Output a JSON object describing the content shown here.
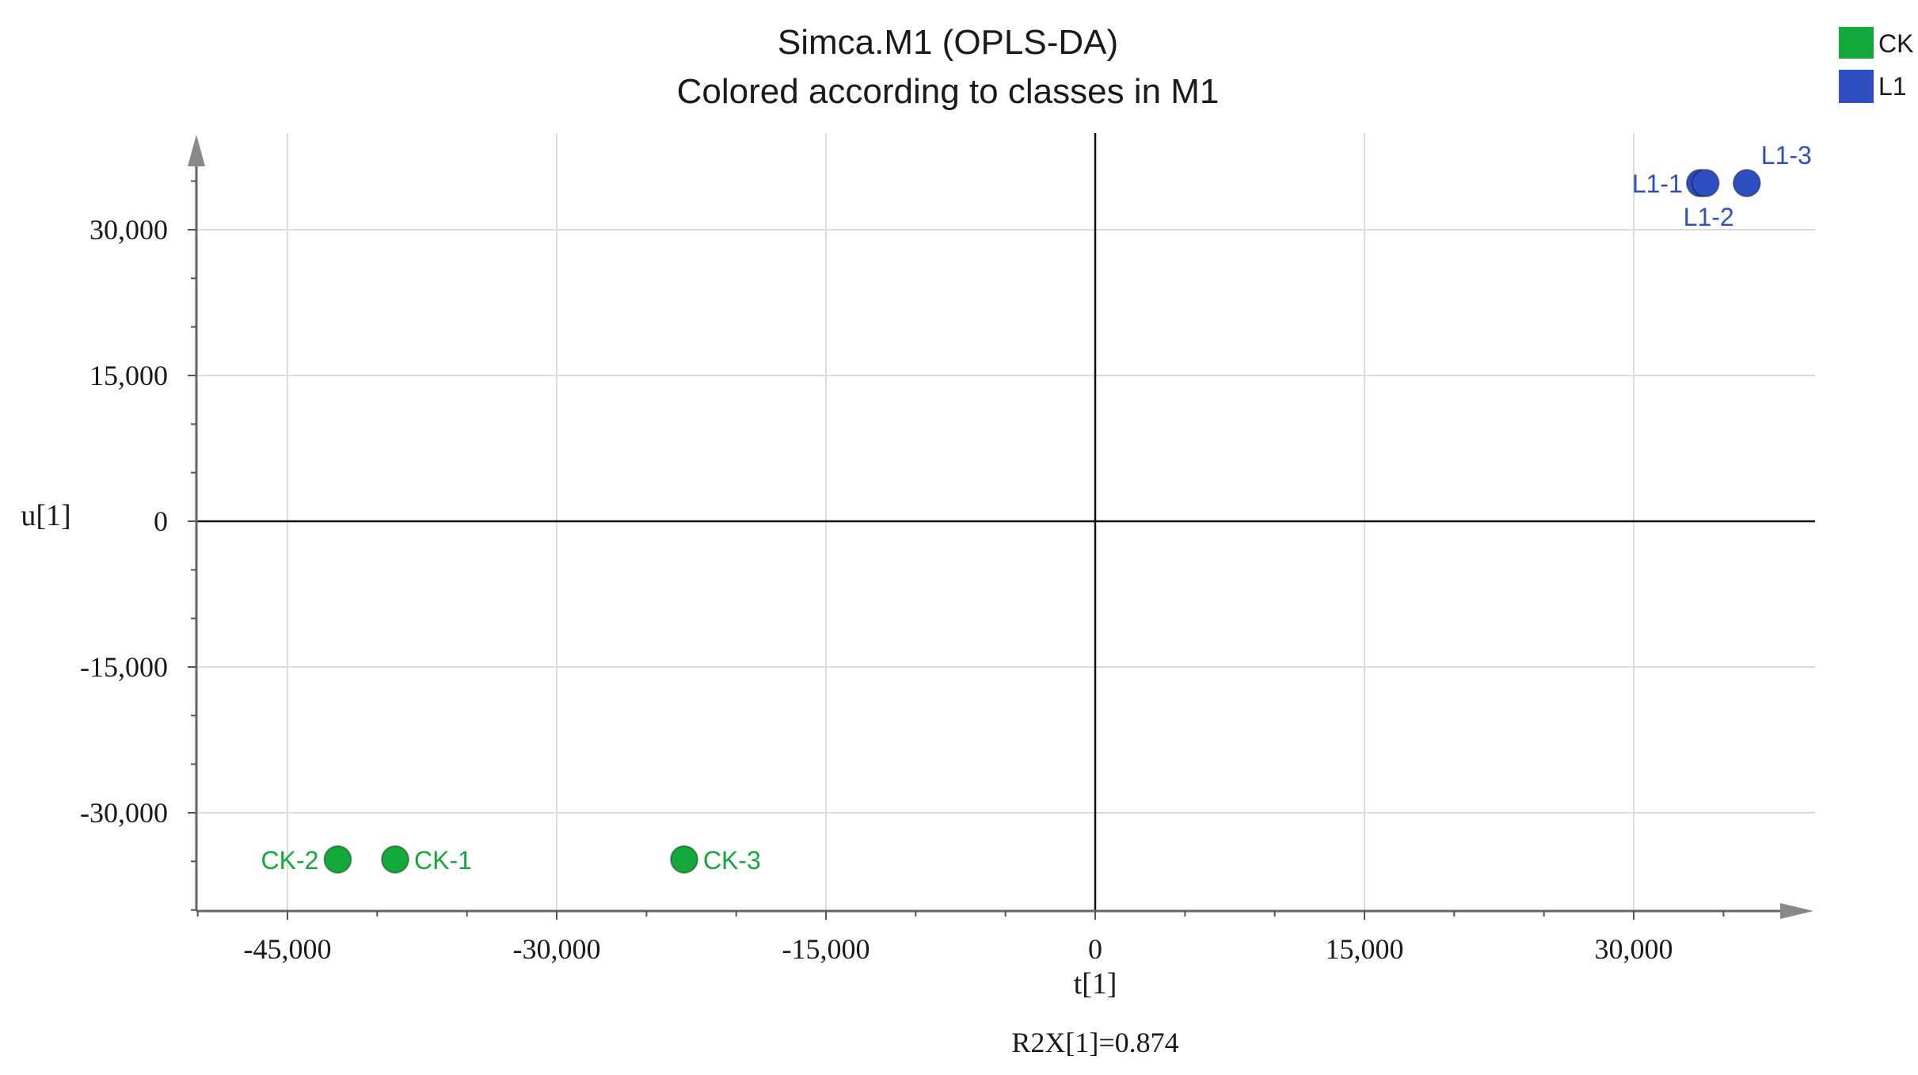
{
  "chart_data": {
    "type": "scatter",
    "title": "Simca.M1 (OPLS-DA)",
    "subtitle": "Colored according to classes in M1",
    "xlabel": "t[1]",
    "ylabel": "u[1]",
    "footnote": "R2X[1]=0.874",
    "xlim": [
      -50000,
      40000
    ],
    "ylim": [
      -40000,
      40000
    ],
    "x_ticks": [
      -45000,
      -30000,
      -15000,
      0,
      15000,
      30000
    ],
    "x_tick_labels": [
      "-45,000",
      "-30,000",
      "-15,000",
      "0",
      "15,000",
      "30,000"
    ],
    "y_ticks": [
      30000,
      15000,
      0,
      -15000,
      -30000
    ],
    "y_tick_labels": [
      "30,000",
      "15,000",
      "0",
      "-15,000",
      "-30,000"
    ],
    "grid": true,
    "legend_position": "top-right",
    "series": [
      {
        "name": "CK",
        "color": "#12a83a",
        "points": [
          {
            "label": "CK-1",
            "x": -39000,
            "y": -34800
          },
          {
            "label": "CK-2",
            "x": -42200,
            "y": -34800
          },
          {
            "label": "CK-3",
            "x": -22900,
            "y": -34800
          }
        ]
      },
      {
        "name": "L1",
        "color": "#2e4fbf",
        "points": [
          {
            "label": "L1-1",
            "x": 33700,
            "y": 34800
          },
          {
            "label": "L1-2",
            "x": 34000,
            "y": 34800
          },
          {
            "label": "L1-3",
            "x": 36300,
            "y": 34800
          }
        ]
      }
    ]
  }
}
